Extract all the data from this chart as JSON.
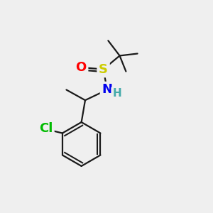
{
  "background_color": "#efefef",
  "atom_colors": {
    "C": "#000000",
    "N": "#0000ee",
    "O": "#ff0000",
    "S": "#cccc00",
    "Cl": "#00bb00",
    "H": "#44aaaa"
  },
  "bond_color": "#1a1a1a",
  "bond_width": 1.6,
  "font_size_atoms": 13,
  "font_size_H": 11
}
